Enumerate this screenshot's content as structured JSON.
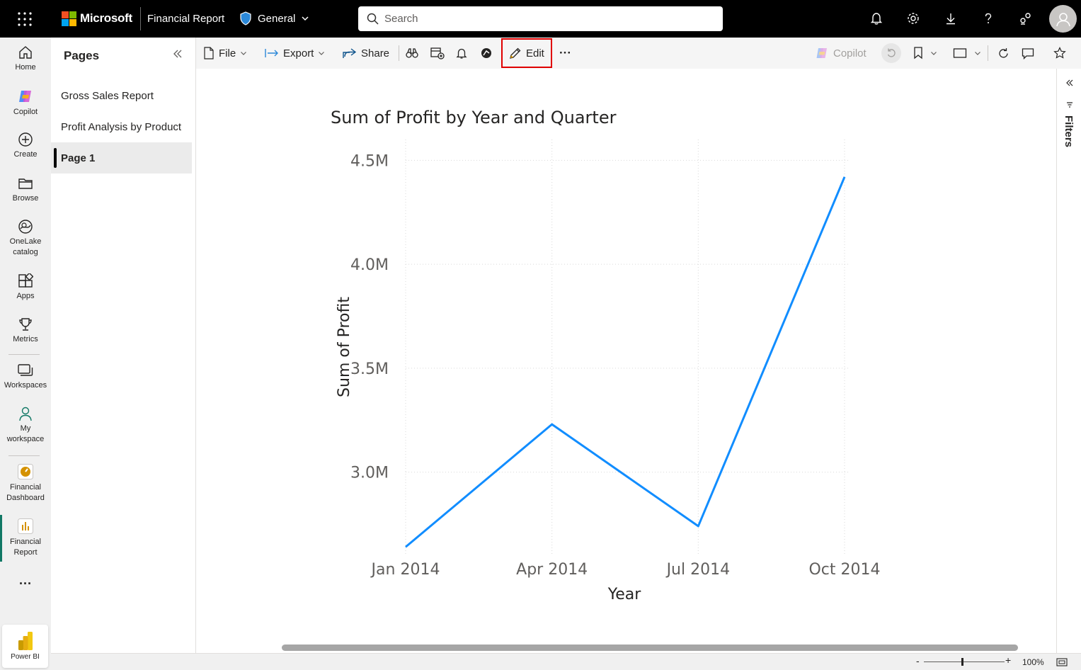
{
  "header": {
    "brand": "Microsoft",
    "report_name": "Financial Report",
    "sensitivity": "General",
    "search_placeholder": "Search",
    "icons": [
      "app-launcher-icon",
      "bell-icon",
      "gear-icon",
      "download-icon",
      "help-icon",
      "share-feedback-icon",
      "avatar-icon"
    ]
  },
  "leftnav": {
    "items": [
      {
        "label": "Home",
        "icon": "home-icon"
      },
      {
        "label": "Copilot",
        "icon": "copilot-icon"
      },
      {
        "label": "Create",
        "icon": "plus-circle-icon"
      },
      {
        "label": "Browse",
        "icon": "folder-icon"
      },
      {
        "label": "OneLake catalog",
        "line1": "OneLake",
        "line2": "catalog",
        "icon": "onelake-icon"
      },
      {
        "label": "Apps",
        "icon": "apps-icon"
      },
      {
        "label": "Metrics",
        "icon": "trophy-icon"
      },
      {
        "label": "Workspaces",
        "icon": "workspaces-icon"
      },
      {
        "label": "My workspace",
        "line1": "My",
        "line2": "workspace",
        "icon": "person-icon"
      },
      {
        "label": "Financial Dashboard",
        "line1": "Financial",
        "line2": "Dashboard",
        "icon": "dashboard-icon"
      },
      {
        "label": "Financial Report",
        "line1": "Financial",
        "line2": "Report",
        "icon": "report-icon"
      }
    ],
    "more": "···",
    "app_tile": "Power BI"
  },
  "pages": {
    "title": "Pages",
    "items": [
      "Gross Sales Report",
      "Profit Analysis by Product",
      "Page 1"
    ],
    "active_index": 2
  },
  "toolbar": {
    "file": "File",
    "export": "Export",
    "share": "Share",
    "edit": "Edit",
    "more": "···",
    "copilot": "Copilot"
  },
  "filters": {
    "label": "Filters"
  },
  "status": {
    "zoom": "100%"
  },
  "colors": {
    "accent": "#118DFF",
    "highlight": "#E00000",
    "nav_active": "#117865"
  },
  "chart_data": {
    "type": "line",
    "title": "Sum of Profit by Year and Quarter",
    "xlabel": "Year",
    "ylabel": "Sum of Profit",
    "categories": [
      "Jan 2014",
      "Apr 2014",
      "Jul 2014",
      "Oct 2014"
    ],
    "series": [
      {
        "values": [
          2.64,
          3.23,
          2.74,
          4.42
        ]
      }
    ],
    "y_ticks": [
      3.0,
      3.5,
      4.0,
      4.5
    ],
    "y_tick_labels": [
      "3.0M",
      "3.5M",
      "4.0M",
      "4.5M"
    ],
    "ylim": [
      2.6,
      4.6
    ],
    "unit": "M",
    "grid": true
  }
}
